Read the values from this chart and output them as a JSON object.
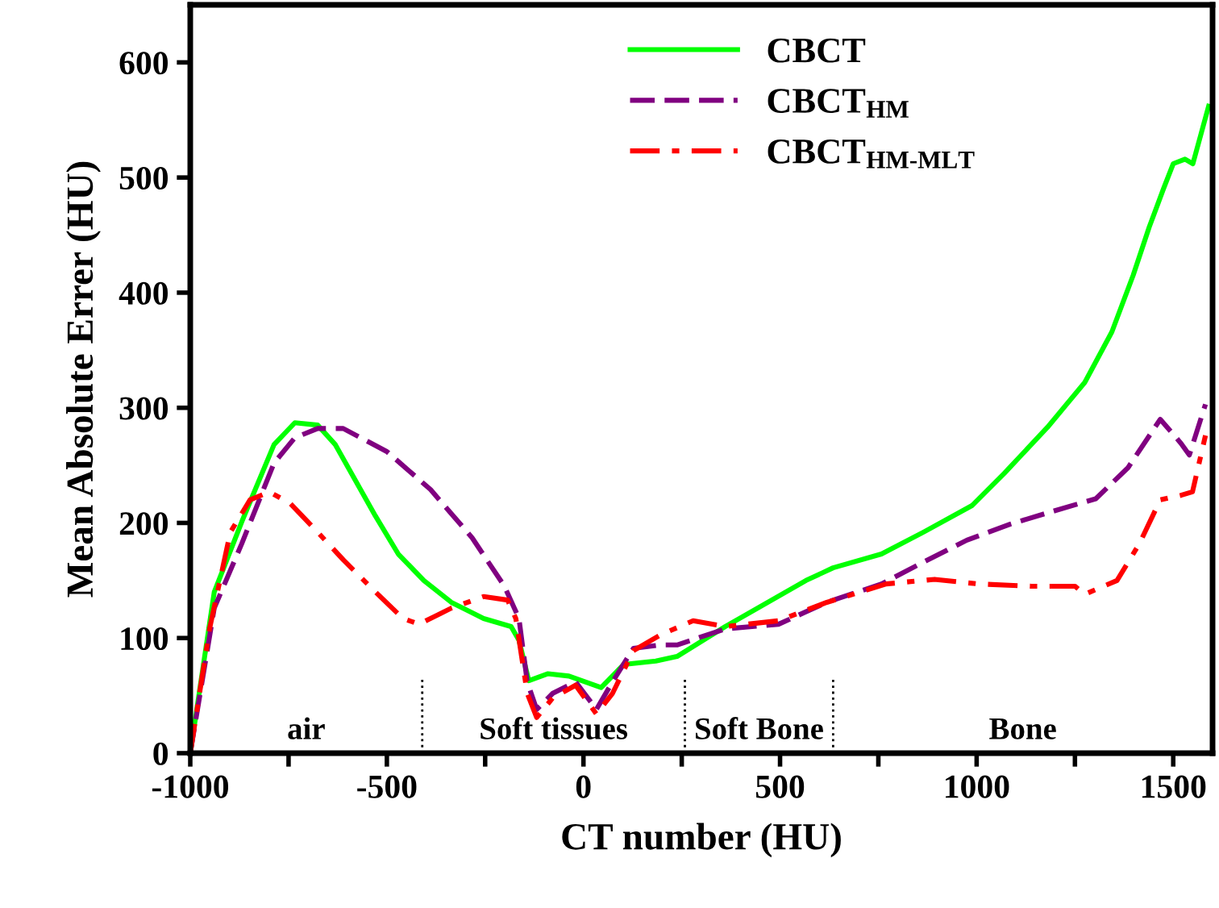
{
  "chart_data": {
    "type": "line",
    "xlabel": "CT number (HU)",
    "ylabel": "Mean Absolute Errer (HU)",
    "xlim": [
      -1000,
      1600
    ],
    "ylim": [
      0,
      650
    ],
    "xticks": [
      -1000,
      {
        "value": -750,
        "label": null
      },
      -500,
      {
        "value": -250,
        "label": null
      },
      0,
      {
        "value": 250,
        "label": null
      },
      500,
      {
        "value": 750,
        "label": null
      },
      1000,
      {
        "value": 1250,
        "label": null
      },
      1500
    ],
    "yticks": [
      0,
      100,
      200,
      300,
      400,
      500,
      600
    ],
    "grid": false,
    "legend": "top right",
    "series": [
      {
        "name": "CBCT",
        "color": "#00ff00",
        "line_style": "solid",
        "x": [
          -1000,
          -939,
          -869,
          -787,
          -734,
          -676,
          -631,
          -529,
          -471,
          -406,
          -336,
          -254,
          -184,
          -164,
          -139,
          -90,
          -37,
          45,
          102,
          184,
          238,
          361,
          566,
          635,
          758,
          865,
          988,
          1070,
          1180,
          1275,
          1344,
          1398,
          1439,
          1475,
          1500,
          1530,
          1550,
          1590
        ],
        "values": [
          0,
          140,
          201,
          268,
          287,
          285,
          268,
          206,
          173,
          150,
          131,
          117,
          110,
          98,
          63,
          69,
          67,
          57,
          77,
          80,
          84,
          110,
          150,
          161,
          173,
          192,
          215,
          243,
          283,
          322,
          366,
          415,
          457,
          490,
          512,
          516,
          512,
          562
        ]
      },
      {
        "name": "CBCT$_{HM}$",
        "color": "#800080",
        "line_style": "dashed",
        "x": [
          -1000,
          -939,
          -869,
          -787,
          -734,
          -676,
          -611,
          -500,
          -389,
          -283,
          -201,
          -164,
          -143,
          -119,
          -78,
          -20,
          33,
          74,
          127,
          197,
          238,
          361,
          496,
          619,
          758,
          865,
          975,
          1086,
          1193,
          1303,
          1385,
          1467,
          1520,
          1541,
          1582
        ],
        "values": [
          0,
          126,
          182,
          252,
          274,
          282,
          282,
          262,
          229,
          187,
          145,
          117,
          62,
          38,
          52,
          62,
          38,
          62,
          91,
          94,
          94,
          108,
          112,
          131,
          147,
          166,
          185,
          199,
          210,
          221,
          248,
          290,
          269,
          259,
          303
        ]
      },
      {
        "name": "CBCT$_{HM-MLT}$",
        "color": "#ff0000",
        "line_style": "dashdot",
        "x": [
          -1000,
          -951,
          -898,
          -848,
          -799,
          -746,
          -676,
          -611,
          -529,
          -459,
          -418,
          -336,
          -254,
          -193,
          -172,
          -143,
          -119,
          -78,
          -20,
          33,
          74,
          127,
          197,
          279,
          361,
          496,
          619,
          770,
          893,
          1004,
          1139,
          1250,
          1275,
          1357,
          1414,
          1467,
          1520,
          1549,
          1582
        ],
        "values": [
          0,
          108,
          192,
          220,
          227,
          217,
          192,
          168,
          140,
          117,
          112,
          126,
          136,
          133,
          117,
          52,
          31,
          48,
          59,
          34,
          52,
          89,
          103,
          115,
          110,
          115,
          131,
          147,
          151,
          147,
          145,
          145,
          138,
          150,
          182,
          220,
          224,
          227,
          276
        ]
      }
    ],
    "ref_lines": [
      {
        "axis": "x",
        "value": -410,
        "line_style": "dotted",
        "color": "#000000"
      },
      {
        "axis": "x",
        "value": 258,
        "line_style": "dotted",
        "color": "#000000"
      },
      {
        "axis": "x",
        "value": 635,
        "line_style": "dotted",
        "color": "#000000"
      }
    ],
    "annotations": [
      "air",
      "Soft tissues",
      "Soft Bone",
      "Bone"
    ]
  }
}
